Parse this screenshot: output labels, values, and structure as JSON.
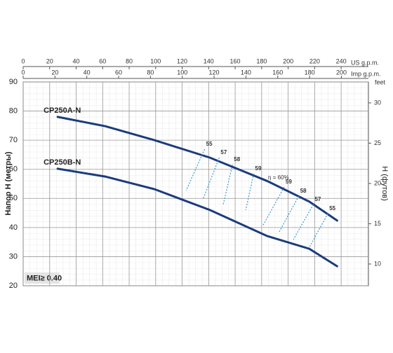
{
  "chart_data": {
    "type": "line",
    "x_axis_label": "US g.p.m.",
    "x2_axis_label": "Imp g.p.m.",
    "y_axis_label": "Напор H (метры)",
    "y2_axis_label": "H (футов)",
    "y2_unit": "feet",
    "mei_label": "MEI≥ 0.40",
    "efficiency_annotation": "η = 60%",
    "xlim": [
      0,
      260.6
    ],
    "xticks": [
      0,
      20,
      40,
      60,
      80,
      100,
      120,
      140,
      160,
      180,
      200,
      220,
      240
    ],
    "x2lim": [
      0,
      217
    ],
    "x2ticks": [
      0,
      20,
      40,
      60,
      80,
      100,
      120,
      140,
      160,
      180,
      200
    ],
    "ylim": [
      20,
      90
    ],
    "yticks": [
      20,
      30,
      40,
      50,
      60,
      70,
      80,
      90
    ],
    "y2lim": [
      7.3,
      32.6
    ],
    "y2ticks": [
      10,
      15,
      20,
      25,
      30
    ],
    "grid": true,
    "series": [
      {
        "name": "CP250A-N",
        "color": "#1b3c7c",
        "x": [
          26,
          62,
          99,
          141,
          184,
          216,
          237
        ],
        "values": [
          78,
          74.8,
          70,
          64,
          56,
          48.9,
          42.4
        ]
      },
      {
        "name": "CP250B-N",
        "color": "#1b3c7c",
        "x": [
          26,
          62,
          99,
          141,
          184,
          216,
          237
        ],
        "values": [
          60.2,
          57.5,
          53.2,
          46,
          37.1,
          32.7,
          26.7
        ]
      }
    ],
    "efficiency_color": "#3a9ad9",
    "efficiency_lines": [
      {
        "label": "55",
        "x": [
          137,
          123
        ],
        "values": [
          66.9,
          52.7
        ]
      },
      {
        "label": "57",
        "x": [
          148,
          136
        ],
        "values": [
          64,
          50
        ]
      },
      {
        "label": "58",
        "x": [
          158,
          151
        ],
        "values": [
          61.6,
          47.9
        ]
      },
      {
        "label": "59",
        "x": [
          174,
          168
        ],
        "values": [
          58.5,
          46
        ]
      },
      {
        "label": "59",
        "x": [
          197,
          181
        ],
        "values": [
          53.9,
          40.7
        ]
      },
      {
        "label": "58",
        "x": [
          208,
          193
        ],
        "values": [
          50.8,
          38.3
        ]
      },
      {
        "label": "57",
        "x": [
          219,
          204
        ],
        "values": [
          47.9,
          35.9
        ]
      },
      {
        "label": "55",
        "x": [
          230,
          216
        ],
        "values": [
          44.8,
          33.2
        ]
      }
    ]
  }
}
